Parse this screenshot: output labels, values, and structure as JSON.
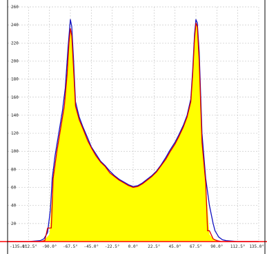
{
  "chart_data": {
    "type": "area",
    "title": "",
    "xlabel": "",
    "ylabel": "",
    "xlim": [
      -135,
      135
    ],
    "ylim": [
      0,
      260
    ],
    "grid": true,
    "x_ticks": [
      -135,
      -112.5,
      -90,
      -67.5,
      -45,
      -22.5,
      0,
      22.5,
      45,
      67.5,
      90,
      112.5,
      135
    ],
    "x_tick_labels": [
      "-135.0°",
      "-112.5°",
      "-90.0°",
      "-67.5°",
      "-45.0°",
      "-22.5°",
      "0.0°",
      "22.5°",
      "45.0°",
      "67.5°",
      "90.0°",
      "112.5°",
      "135.0°"
    ],
    "y_ticks": [
      20,
      40,
      60,
      80,
      100,
      120,
      140,
      160,
      180,
      200,
      220,
      240,
      260
    ],
    "y_tick_labels": [
      "20",
      "40",
      "60",
      "80",
      "100",
      "120",
      "140",
      "160",
      "180",
      "200",
      "220",
      "240",
      "260"
    ],
    "series": [
      {
        "style": "fill",
        "color": "#ffff00",
        "x": [
          -135,
          -112.5,
          -100,
          -95,
          -90,
          -86,
          -82,
          -78,
          -74,
          -71,
          -69,
          -67.5,
          -66,
          -64,
          -62,
          -58,
          -54,
          -49,
          -45,
          -40,
          -35,
          -30,
          -25,
          -20,
          -15,
          -10,
          -5,
          0,
          5,
          10,
          15,
          20,
          25,
          30,
          35,
          40,
          45,
          49,
          54,
          58,
          62,
          64,
          66,
          67.5,
          69,
          71,
          74,
          78,
          82,
          86,
          90,
          95,
          100,
          112.5,
          135
        ],
        "values": [
          0,
          0,
          0,
          2,
          8,
          70,
          100,
          125,
          150,
          185,
          220,
          236,
          228,
          190,
          150,
          135,
          125,
          112,
          104,
          95,
          88,
          83,
          76,
          72,
          68,
          65,
          62,
          60,
          61,
          64,
          68,
          72,
          77,
          84,
          91,
          100,
          108,
          116,
          127,
          138,
          155,
          185,
          225,
          242,
          238,
          200,
          110,
          65,
          8,
          3,
          1,
          0,
          0,
          0,
          0
        ]
      },
      {
        "style": "line",
        "color": "#1010c0",
        "x": [
          -135,
          -112.5,
          -100,
          -96,
          -92,
          -89,
          -87,
          -84,
          -80,
          -76,
          -73,
          -70,
          -68,
          -67.5,
          -66,
          -64,
          -62,
          -58,
          -54,
          -49,
          -45,
          -40,
          -35,
          -30,
          -25,
          -20,
          -15,
          -10,
          -5,
          0,
          5,
          10,
          15,
          20,
          25,
          30,
          35,
          40,
          45,
          49,
          54,
          58,
          62,
          64,
          66,
          67.5,
          69,
          71,
          74,
          78,
          82,
          86,
          88,
          92,
          96,
          100,
          112.5,
          135
        ],
        "values": [
          0,
          0,
          1,
          3,
          10,
          35,
          70,
          95,
          120,
          145,
          170,
          215,
          240,
          246,
          238,
          200,
          155,
          138,
          127,
          115,
          105,
          97,
          89,
          84,
          78,
          73,
          69,
          66,
          63,
          61,
          62,
          65,
          69,
          73,
          78,
          85,
          93,
          102,
          110,
          118,
          129,
          140,
          158,
          190,
          230,
          246,
          242,
          210,
          120,
          70,
          40,
          20,
          12,
          5,
          2,
          1,
          0,
          0
        ]
      },
      {
        "style": "line",
        "color": "#e00000",
        "x": [
          -135,
          -112.5,
          -100,
          -95,
          -92,
          -88,
          -86,
          -82,
          -78,
          -74,
          -71,
          -69,
          -67.5,
          -66,
          -64,
          -62,
          -58,
          -54,
          -49,
          -45,
          -40,
          -35,
          -30,
          -25,
          -20,
          -15,
          -10,
          -5,
          0,
          5,
          10,
          15,
          20,
          25,
          30,
          35,
          40,
          45,
          49,
          54,
          58,
          62,
          64,
          66,
          67.5,
          69,
          71,
          74,
          78,
          80,
          82,
          86,
          90,
          95,
          100,
          112.5,
          135
        ],
        "values": [
          0,
          0,
          0,
          1,
          15,
          15,
          70,
          100,
          125,
          150,
          185,
          220,
          236,
          228,
          190,
          150,
          135,
          125,
          112,
          104,
          95,
          88,
          83,
          76,
          72,
          68,
          65,
          62,
          60,
          61,
          64,
          68,
          72,
          77,
          84,
          91,
          100,
          108,
          116,
          127,
          138,
          155,
          185,
          225,
          242,
          238,
          200,
          110,
          65,
          12,
          12,
          3,
          1,
          0,
          0,
          0,
          0
        ]
      }
    ],
    "baseline": {
      "color": "#ff0000",
      "value": 0
    }
  }
}
